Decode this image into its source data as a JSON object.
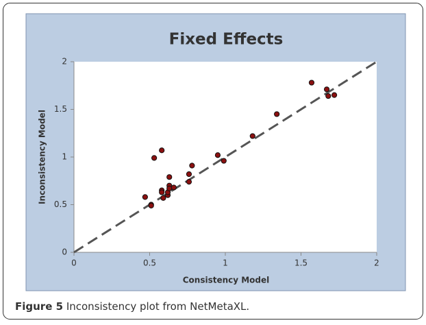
{
  "chart_data": {
    "type": "scatter",
    "title": "Fixed Effects",
    "x_label": "Consistency Model",
    "y_label": "Inconsistency Model",
    "x": [
      0.47,
      0.51,
      0.51,
      0.53,
      0.58,
      0.58,
      0.58,
      0.59,
      0.62,
      0.62,
      0.63,
      0.63,
      0.63,
      0.66,
      0.76,
      0.76,
      0.78,
      0.95,
      0.99,
      1.18,
      1.34,
      1.57,
      1.67,
      1.68,
      1.72
    ],
    "values": [
      0.58,
      0.5,
      0.49,
      0.99,
      1.07,
      0.65,
      0.63,
      0.57,
      0.6,
      0.63,
      0.79,
      0.7,
      0.67,
      0.68,
      0.82,
      0.74,
      0.91,
      1.02,
      0.96,
      1.22,
      1.45,
      1.78,
      1.71,
      1.64,
      1.65
    ],
    "color": "#8b1010",
    "xlim": [
      0,
      2
    ],
    "ylim": [
      0,
      2
    ],
    "xticks": [
      0,
      0.5,
      1,
      1.5,
      2
    ],
    "yticks": [
      0,
      0.5,
      1,
      1.5,
      2
    ],
    "grid": false,
    "diagonal": true
  },
  "caption": {
    "label": "Figure 5",
    "text": "Inconsistency plot from NetMetaXL."
  }
}
